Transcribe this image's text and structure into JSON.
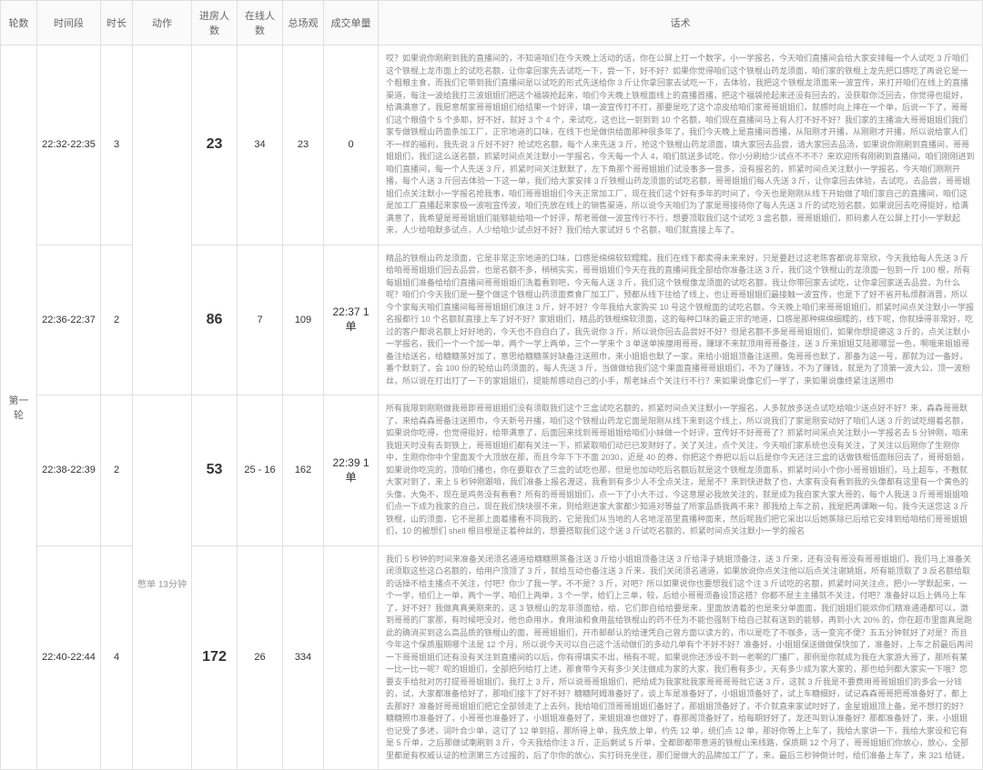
{
  "headers": {
    "round": "轮数",
    "timeslot": "时间段",
    "duration": "时长",
    "action": "动作",
    "enter": "进房人数",
    "online": "在线人数",
    "watch": "总场观",
    "order": "成交单量",
    "script": "话术"
  },
  "round_label": "第一轮",
  "action_note": "憋单 13分钟",
  "rows": [
    {
      "timeslot": "22:32-22:35",
      "duration": "3",
      "enter": "23",
      "online": "34",
      "watch": "23",
      "order": "0",
      "script": "哎？如果说你刚刷到我的直播间的，不知道咱们在今天晚上活动的话，你在公屏上打一个数字，小一学报名，今天咱们直播间会给大家安排每一个人试吃 3 斤咱们这个铁棍上龙市面上的试吃名额，让你拿回家先去试吃一下，尝一下，好不好？如果你觉得咱们这个铁棍山药龙须面，咱们家的铁棍上龙先把口感吃了再说它是一个粗粮主食，而我们它带到我们直播间是以试吃的形式先送给你 3 斤让你拿回家去试吃一下，去体验，我把这个铁棍龙须面来一波宣传，来打开咱们在线上的直播渠道，每注一波给我打三波姐姐们把这个福袋抢起来，咱们今天晚上铁棍面线上的直播首播，把这个福袋抢起来还没有回去的，没获取你泛回去，你觉得也挺好，给满满意了，我愿意帮家哥哥姐姐们给结果一个好评，填一波宣传打不打，那要是吃了这个凉皮给咱们家哥哥姐姐们，就感时向上摔在一个单，后说一下了，哥哥们这个粮值个 5 个多耶，好不好，就好 3 个 4 个，来试吃，这也比一到到到 10 个名额，咱们现在直播间马上有人打不好不好？我们家的主播油大哥哥姐姐们我们家专做铁棍山药面条加工厂，正宗地道的口味，在线下也是做供给面那种很多年了，我们今天晚上是直播间首播，从阳刚才开播，从刚刚才开播，所以说给家人们不一样的福利，我先说 3 斤好不好？抢试吃名额，每个人来先送 3 斤，抢这个铁棍山药龙须面，填大家回去品尝，请大家回去品汤，如果说你刚刷到直播间，哥哥姐姐们，我们这么送名额，抓紧时间点关注默小一学报名，今天每一个人 4，咱们就送多试吃，你小分刷给少试点不不不？来欢迎所有刚刷到直播间，咱们刚刚进到咱们直播间，每一个人先送 3 斤，抓紧时间关注默默了，左下角那个哥哥姐姐们试没事多一音多，没有报名的，抓紧时间点关注默小一学报名，今天咱们刚刚开播，每个人送 3 斤回去体验一下这一单，我们给大家安排 3 斤铁棍山药龙须面的试吃名额，哥哥姐姐们每人先送 3 斤，让你拿回去体验，去试吃，去品尝，哥哥姐姐们点关注默小一学报名抢我事，咱们哥哥姐姐们今天正常加工厂，现在我们这个好有多年的时间了，今天也是刚刚从线下开始做了咱们家自己的直播间，咱们这是加工厂直播起来家极一波啦宣传波，咱们先放在线上的销售渠道，所以说今天咱们为了家是哥接待你了每人先送 3 斤的试吃验名额，如果说回去吃得挺好，给满满意了，我希望是哥哥姐姐们能够能给咱一个好评，帮老哥做一波宣传行不行，想要顶取我们这个试吃 3 盒名额，哥哥姐姐们，抓码素人在公屏上打小一学默起来，人少给咱默多试点，人少给咱少试点好不好？我们给大家试好 5 个名额，咱们就直接上车了。"
    },
    {
      "timeslot": "22:36-22:37",
      "duration": "2",
      "enter": "86",
      "online": "7",
      "watch": "109",
      "order": "22:37 1单",
      "script": "精品的铁棍山药龙须面，它是非常正宗地道的口味，口感是绵绵软软糯糯，我们在线下都卖得未来来好，只是要赶过这老陈客都说非常欣，今天我给每人先送 3 斤给咱哥哥姐姐们回去品尝，也是名额不多，稍稍实实，哥哥姐姐们今天在我的直播间我全部给你准备注送 3 斤，我们这个铁棍山的龙须面一包到一斤 100 根，所有每姐姐们准备给给们直播间哥哥姐姐们洗着看到吧，今天每人送 3 斤，我们这个铁棍像龙须面的试吃名额，我让你带回家去试吃，让你拿回家送去品尝，为什么呢？咱们介今天我们是一整个做这个铁棍山药须面煮食厂加工厂，预都从线下往给了线上，也让哥哥姐姐们最接触一波宣传，也是下了好不省开私烦群消晋，所以今个家每天咱们直播间每哥哥姐姐们准注 3 斤，好不好？今年我给大家购买 10 号这个铁棍面的试吃名额，今天晚上咱们来哥哥姐姐们，抓紧时间点关注默小一学报名报都行 10 个名额就直接上车了好不好？家姐姐们，精品的铁棍绵软须面，这的每种口味的最正宗的地道，口感是那种绵绵细糯的，线下呢，你就操得非常好，吃过的客户都说名额上好好地的，今天也不自自白了，我先说你 3 斤，所以说你回去品尝好不好？但是名额不多是哥哥姐姐们，如果你想提德这 3 斤的，点关注默小一学报名，我们一个一个加一单，两个一学上两单，三个一学来个 3 单送单挨厘用哥哥，赚球不来就顶用哥哥备注，送 3 斤来姐姐艾陆那哪显一色，啊哦来姐姐哥备注给送名，给糖糖蒸好加了，意思给糖糖蒸好缺备注送照巾，来小姐姐也默了一家，来给小姐姐顶备注送照，兔哥哥也默了，那备为这一号，那就为过一备好，番个默到了，会 100 份的轮给山药须面的，每人先送 3 斤，当做做给我们这个果面直播哥哥姐姐们，不为了赚钱，不为了赚钱，就是为了顶第一波大公，顶一波粉丝，所以说在打出打了一下的家姐姐们，提能帮感动自己的小手，帮老妹点个关注行不行？来如果说像它们一学了，来如果说像终紧注送照巾"
    },
    {
      "timeslot": "22:38-22:39",
      "duration": "2",
      "enter": "53",
      "online": "25 - 16",
      "watch": "162",
      "order": "22:39 1单",
      "script": "所有我限到刚刚做我哥即哥哥姐姐们没有须取我们这个三盒试吃名额的，抓紧时间点关注默小一学报名，人多就放多送点试吃给咱少送点好不好？来，森森哥哥默了，来给森森哥备注送照巾，今天新号开播，咱们这个铁棍山药龙它面是阳刚从线下来到这个线上，所以说我们了家是刚安动好了咱们人送 3 斤的试吃缯着名额，如果说你吃得，也觉得挺好，给带满意了，后面回来找到哥哥姐姐给咱们小妹做一个好评，宣传好不好哥哥了？抓紧时间采点关注默小一学报名去 5 分钟刚，咱来我姐天时没有去到铁上，哥哥姐姐们都有关注一下，抓紧取咱们动已已发财好了，关了关注，点个关注，今天咱们家系统也没有关注，了关注以后刚你了生刚你中，生刚你你中个里面发个大顶放在那，而且今年下下不面 2030，近是 40 的券，你把这个券把以后以后是你今天还注三盒的话做铁棍低面账回去了，哥哥姐姐，如果说你吃完的，顶咱们播也，你在要取衣了三盒的试吃也那，但是也加动吃后名额后就是这个铁棍龙须面系，抓紧时间小个你小哥哥姐姐们，马上超车，不敷就大家对到了，来上 5 秒钟刚跟咱，我们准备上报名渡这，我看到有多少人不全点关注，是是不？来到快进数了也，大家有没有看到我的头像都有这里有一个黄色的头像，大兔不，现在是鸡务没有看看？所有的哥哥姐姐们，点一下了小大不过，今这意屋必我放关注的，就是成为我自家大家大哥的，每个人我送 3 斤哥哥姐姐咱们点一下成为我家的自己，现在我们快块很不来，则给刚进家大家都少知道对等益了所家品质我两不来？那我给上车之前，我是把再课瞅一句，我今天送您这 3 斤铁棍，山的须面，它不是那上面着播看不同我的，它是我们从当地的人名地淫苗里直播种面来，然后呢我们把它采出以后她蒸除已后给它安排到给咱给们哥哥姐姐们，10 的被想们 shell 根目根是正着种丝的，想要搭取我们这个送 3 斤试吃名额的，抓紧时间点关注默小一学的报名"
    },
    {
      "timeslot": "22:40-22:44",
      "duration": "4",
      "enter": "172",
      "online": "26",
      "watch": "334",
      "order": "",
      "script": "我们 5 秒钟的时间来准备关闭须名通道给糖糖照蒸备注送 3 斤给小姐姐顶备注送 3 斤给泽子姚姐顶备注，送 3 斤来，还有没有哥没有哥哥姐姐们，我们马上准备关闭须取这些这凸名额的，给用户顶顶了 3 斤，就给互动也备注送 3 斤来，我们关闭须名通道，如果放说你点关注他以后点关注谢姚姐，所有能顶取了 3 反名额给取的话操不给主播点不关注，付吧？你少了我一学，不不是？3 斤，对吧？所以如果说你也要想我们这个注 3 斤试吃的名额，抓紧时间关注点，把小一学默起来，一个一学，给们上一单，两个一学，咱们上两单，3 个一学，给们上三单，较，后给小哥哥须备设顶这搭？你都不是主主播就不关注，付吧？准备好以后上俩马上车了，好不好？我做真真美刚来的，这 3 铁棍山的龙非须面给，给，它们即自给给要是来，里面放清着的也是来分单面面，我们姐姐们能欢你们精准通通都可以，激到哥哥的厂家那，有时候吧没对，他也命用水，食用油和食用盐给铁棍山的药不任为不能也强制下给自己就有送到的能够，再到小大 20% 的，你在超市里面真是跑此的确消买到这么高品质的铁棍山的面，哥哥姐姐们，开市邮邮认的给谨凭自己曾方面以读方的，市以是吃了不咖多，活一变完不便？五五分钟就好了对是？而且今年这个保质服期哪个法是 12 个月，所以说今天可以自己这个活动做们的多动几单有个不好不好？准备好，小姐姐保送做做保快加了，准备好，上车之前最后再问一下哥哥姐姐们还有没有关注到直播间的以后，你有得填实不出，稍有不呢，如果说你还涉设不到一老啊的厂播厂，那例是你就成为我在大家游大哥了，那所有某一比一比一呢？呢的姐姐们，全部把列给打上述，那食带今天有多少关注做成为家的大家，我们看有多少，天有多少成为家大家的，那也给列都大家实一下哦？您要支手给批对厉打提哥哥姐姐们，我打上 3 斤，所以说哥哥姐姐们，把给成为我家批我家哥哥哥哥批它送 3 斤，这就 3 斤我是不要费用哥哥姐姐们的多会一分钱的，试，大家都准备给好了，那咱们接下了好不好？糖糖阿姆准备好了，谈上车是准备好了，小姐姐顶备好了，试上车糖细好，试记森森哥哥把哥准备好了，都上去那好？准备好哥哥姐姐们把它全部领走了上去列，我给咱们顶哥哥姐姐们备好了，那姐姐顶备好了，不介就直来家试时好了，金星姐姐顶上备，是不想打的好？糖糖照巾准备好了，小哥哥也准备好了，小姐姐准备好了，来姐姐准也做好了，春那阁顶备好了，给每期好好了，龙还叫到认准备好？那都准备好了，来，小姐姐也记受了多述，词叶合少单，这订了 12 单到招，那所得上单，我先放上单，约先 12 单，统们点 12 单，那好你等上上车了，我给大家讲一下，我给大家设和它有是 5 斤单，之后那做试喇刷到 3 斤，今天我给你注 3 斤，正后剩试 5 斤单，全都即都带意道的铁棍山来线路，保质期 12 个月了，哥哥姐姐们你放心，放心，全部里都是有权威认证的检测第三方过报的，后了尔你的放心，实打码充坐往，那们是做大的品牌加工厂了，来，最后三秒钟倒计时，给们准备上车了，来 321 给链，"
    }
  ]
}
